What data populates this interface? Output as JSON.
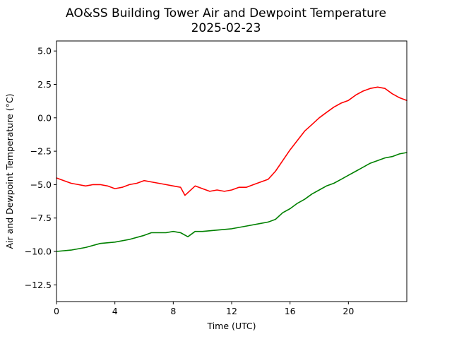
{
  "chart_data": {
    "type": "line",
    "title": "AO&SS Building Tower Air and Dewpoint Temperature",
    "subtitle": "2025-02-23",
    "xlabel": "Time (UTC)",
    "ylabel": "Air and Dewpoint Temperature (°C)",
    "xlim": [
      0,
      24
    ],
    "ylim": [
      -13.75,
      5.75
    ],
    "xticks": [
      0,
      4,
      8,
      12,
      16,
      20
    ],
    "xtick_labels": [
      "0",
      "4",
      "8",
      "12",
      "16",
      "20"
    ],
    "yticks": [
      5.0,
      2.5,
      0.0,
      -2.5,
      -5.0,
      -7.5,
      -10.0,
      -12.5
    ],
    "ytick_labels": [
      "5.0",
      "2.5",
      "0.0",
      "−2.5",
      "−5.0",
      "−7.5",
      "−10.0",
      "−12.5"
    ],
    "grid": false,
    "legend": "none",
    "series": [
      {
        "color": "#ff0000",
        "x": [
          0,
          0.5,
          1,
          1.5,
          2,
          2.5,
          3,
          3.5,
          4,
          4.5,
          5,
          5.5,
          6,
          6.5,
          7,
          7.5,
          8,
          8.5,
          8.8,
          9,
          9.5,
          10,
          10.5,
          11,
          11.5,
          12,
          12.5,
          13,
          13.5,
          14,
          14.5,
          15,
          15.5,
          16,
          16.5,
          17,
          17.5,
          18,
          18.5,
          19,
          19.5,
          20,
          20.5,
          21,
          21.5,
          22,
          22.5,
          23,
          23.5,
          24
        ],
        "y": [
          -4.5,
          -4.7,
          -4.9,
          -5.0,
          -5.1,
          -5.0,
          -5.0,
          -5.1,
          -5.3,
          -5.2,
          -5.0,
          -4.9,
          -4.7,
          -4.8,
          -4.9,
          -5.0,
          -5.1,
          -5.2,
          -5.8,
          -5.6,
          -5.1,
          -5.3,
          -5.5,
          -5.4,
          -5.5,
          -5.4,
          -5.2,
          -5.2,
          -5.0,
          -4.8,
          -4.6,
          -4.0,
          -3.2,
          -2.4,
          -1.7,
          -1.0,
          -0.5,
          0.0,
          0.4,
          0.8,
          1.1,
          1.3,
          1.7,
          2.0,
          2.2,
          2.3,
          2.2,
          1.8,
          1.5,
          1.3
        ]
      },
      {
        "color": "#008000",
        "x": [
          0,
          1,
          2,
          3,
          4,
          5,
          6,
          6.5,
          7,
          7.5,
          8,
          8.5,
          9,
          9.5,
          10,
          11,
          12,
          13,
          14,
          14.5,
          15,
          15.5,
          16,
          16.5,
          17,
          17.5,
          18,
          18.5,
          19,
          19.5,
          20,
          20.5,
          21,
          21.5,
          22,
          22.5,
          23,
          23.5,
          24
        ],
        "y": [
          -10.0,
          -9.9,
          -9.7,
          -9.4,
          -9.3,
          -9.1,
          -8.8,
          -8.6,
          -8.6,
          -8.6,
          -8.5,
          -8.6,
          -8.9,
          -8.5,
          -8.5,
          -8.4,
          -8.3,
          -8.1,
          -7.9,
          -7.8,
          -7.6,
          -7.1,
          -6.8,
          -6.4,
          -6.1,
          -5.7,
          -5.4,
          -5.1,
          -4.9,
          -4.6,
          -4.3,
          -4.0,
          -3.7,
          -3.4,
          -3.2,
          -3.0,
          -2.9,
          -2.7,
          -2.6
        ]
      }
    ]
  }
}
